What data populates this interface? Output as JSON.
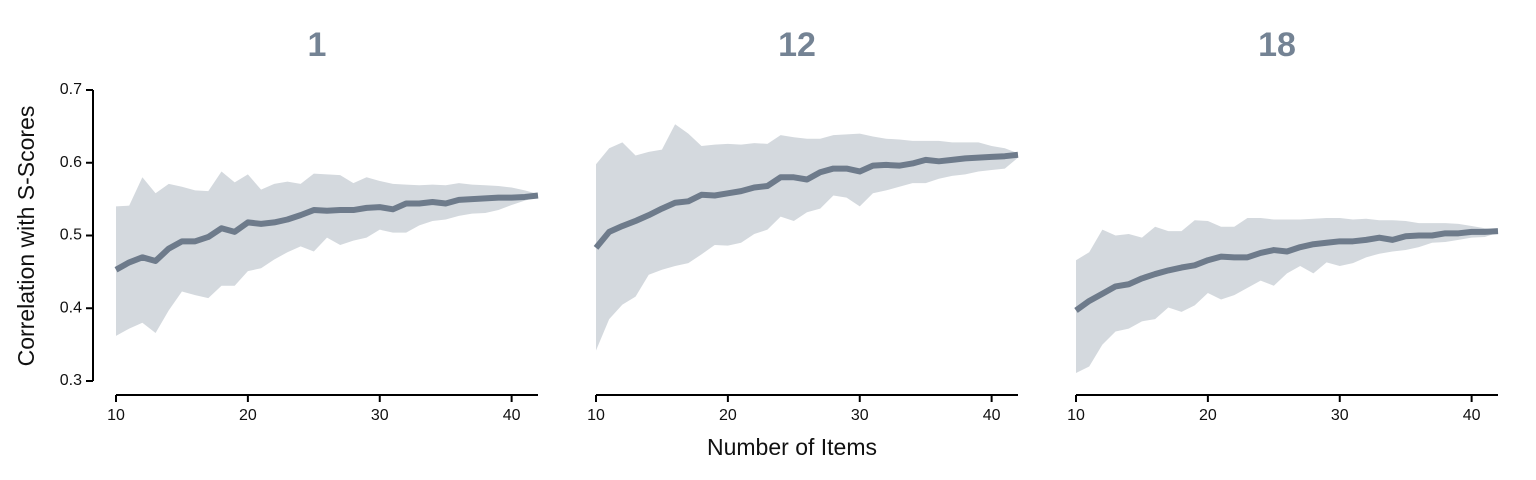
{
  "chart_data": [
    {
      "type": "line",
      "title": "1",
      "ylabel": "Correlation with S-Scores",
      "x": [
        10,
        11,
        12,
        13,
        14,
        15,
        16,
        17,
        18,
        19,
        20,
        21,
        22,
        23,
        24,
        25,
        26,
        27,
        28,
        29,
        30,
        31,
        32,
        33,
        34,
        35,
        36,
        37,
        38,
        39,
        40,
        41,
        42
      ],
      "series": [
        {
          "color": "#6e7b8b",
          "band_color": "#d4d9de",
          "values": [
            0.453,
            0.463,
            0.47,
            0.465,
            0.482,
            0.492,
            0.492,
            0.498,
            0.51,
            0.505,
            0.518,
            0.516,
            0.518,
            0.522,
            0.528,
            0.535,
            0.534,
            0.535,
            0.535,
            0.538,
            0.539,
            0.536,
            0.544,
            0.544,
            0.546,
            0.544,
            0.549,
            0.55,
            0.551,
            0.552,
            0.552,
            0.553,
            0.555
          ],
          "upper": [
            0.54,
            0.541,
            0.58,
            0.558,
            0.571,
            0.567,
            0.562,
            0.561,
            0.588,
            0.573,
            0.584,
            0.563,
            0.571,
            0.574,
            0.571,
            0.585,
            0.584,
            0.583,
            0.572,
            0.58,
            0.575,
            0.571,
            0.57,
            0.569,
            0.57,
            0.569,
            0.572,
            0.57,
            0.569,
            0.568,
            0.566,
            0.562,
            0.557
          ],
          "lower": [
            0.362,
            0.372,
            0.38,
            0.366,
            0.397,
            0.423,
            0.418,
            0.414,
            0.431,
            0.431,
            0.451,
            0.455,
            0.467,
            0.477,
            0.485,
            0.478,
            0.497,
            0.487,
            0.493,
            0.497,
            0.508,
            0.504,
            0.504,
            0.514,
            0.52,
            0.522,
            0.527,
            0.53,
            0.531,
            0.535,
            0.542,
            0.548,
            0.553
          ]
        }
      ],
      "xlim": [
        10,
        42
      ],
      "xticks": [
        10,
        20,
        30,
        40
      ],
      "ylim": [
        0.3,
        0.7
      ],
      "yticks": [
        0.3,
        0.4,
        0.5,
        0.6,
        0.7
      ]
    },
    {
      "type": "line",
      "title": "12",
      "xlabel": "Number of Items",
      "x": [
        10,
        11,
        12,
        13,
        14,
        15,
        16,
        17,
        18,
        19,
        20,
        21,
        22,
        23,
        24,
        25,
        26,
        27,
        28,
        29,
        30,
        31,
        32,
        33,
        34,
        35,
        36,
        37,
        38,
        39,
        40,
        41,
        42
      ],
      "series": [
        {
          "color": "#6e7b8b",
          "band_color": "#d4d9de",
          "values": [
            0.483,
            0.505,
            0.513,
            0.52,
            0.528,
            0.537,
            0.545,
            0.547,
            0.556,
            0.555,
            0.558,
            0.561,
            0.566,
            0.568,
            0.58,
            0.58,
            0.577,
            0.587,
            0.592,
            0.592,
            0.588,
            0.596,
            0.597,
            0.596,
            0.599,
            0.604,
            0.602,
            0.604,
            0.606,
            0.607,
            0.608,
            0.609,
            0.611
          ],
          "upper": [
            0.598,
            0.62,
            0.628,
            0.61,
            0.615,
            0.618,
            0.653,
            0.64,
            0.623,
            0.625,
            0.626,
            0.625,
            0.627,
            0.626,
            0.638,
            0.635,
            0.633,
            0.633,
            0.638,
            0.639,
            0.64,
            0.636,
            0.633,
            0.632,
            0.63,
            0.63,
            0.63,
            0.628,
            0.628,
            0.628,
            0.623,
            0.62,
            0.613
          ],
          "lower": [
            0.342,
            0.385,
            0.405,
            0.416,
            0.446,
            0.453,
            0.458,
            0.462,
            0.474,
            0.487,
            0.486,
            0.49,
            0.502,
            0.508,
            0.526,
            0.52,
            0.532,
            0.537,
            0.555,
            0.552,
            0.54,
            0.558,
            0.562,
            0.567,
            0.572,
            0.572,
            0.578,
            0.582,
            0.584,
            0.588,
            0.59,
            0.592,
            0.607
          ]
        }
      ],
      "xlim": [
        10,
        42
      ],
      "xticks": [
        10,
        20,
        30,
        40
      ],
      "ylim": [
        0.3,
        0.7
      ]
    },
    {
      "type": "line",
      "title": "18",
      "x": [
        10,
        11,
        12,
        13,
        14,
        15,
        16,
        17,
        18,
        19,
        20,
        21,
        22,
        23,
        24,
        25,
        26,
        27,
        28,
        29,
        30,
        31,
        32,
        33,
        34,
        35,
        36,
        37,
        38,
        39,
        40,
        41,
        42
      ],
      "series": [
        {
          "color": "#6e7b8b",
          "band_color": "#d4d9de",
          "values": [
            0.397,
            0.41,
            0.42,
            0.43,
            0.433,
            0.441,
            0.447,
            0.452,
            0.456,
            0.459,
            0.466,
            0.471,
            0.47,
            0.47,
            0.476,
            0.48,
            0.478,
            0.484,
            0.488,
            0.49,
            0.492,
            0.492,
            0.494,
            0.497,
            0.494,
            0.499,
            0.5,
            0.5,
            0.503,
            0.503,
            0.505,
            0.505,
            0.506
          ],
          "upper": [
            0.466,
            0.477,
            0.508,
            0.5,
            0.502,
            0.497,
            0.512,
            0.506,
            0.506,
            0.521,
            0.52,
            0.512,
            0.512,
            0.524,
            0.524,
            0.522,
            0.522,
            0.522,
            0.523,
            0.524,
            0.524,
            0.522,
            0.523,
            0.521,
            0.521,
            0.52,
            0.517,
            0.517,
            0.517,
            0.516,
            0.513,
            0.51,
            0.508
          ],
          "lower": [
            0.311,
            0.32,
            0.35,
            0.368,
            0.372,
            0.382,
            0.385,
            0.401,
            0.395,
            0.404,
            0.421,
            0.412,
            0.418,
            0.428,
            0.438,
            0.431,
            0.448,
            0.458,
            0.448,
            0.463,
            0.458,
            0.462,
            0.47,
            0.475,
            0.478,
            0.48,
            0.484,
            0.49,
            0.491,
            0.494,
            0.497,
            0.498,
            0.504
          ]
        }
      ],
      "xlim": [
        10,
        42
      ],
      "xticks": [
        10,
        20,
        30,
        40
      ],
      "ylim": [
        0.3,
        0.7
      ]
    }
  ]
}
